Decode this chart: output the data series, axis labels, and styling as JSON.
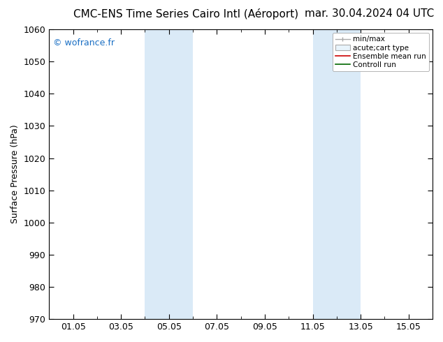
{
  "title": "CMC-ENS Time Series Cairo Intl (Aéroport)",
  "title_right": "mar. 30.04.2024 04 UTC",
  "ylabel": "Surface Pressure (hPa)",
  "ylim": [
    970,
    1060
  ],
  "yticks": [
    970,
    980,
    990,
    1000,
    1010,
    1020,
    1030,
    1040,
    1050,
    1060
  ],
  "xtick_positions": [
    1,
    3,
    5,
    7,
    9,
    11,
    13,
    15
  ],
  "xtick_labels": [
    "01.05",
    "03.05",
    "05.05",
    "07.05",
    "09.05",
    "11.05",
    "13.05",
    "15.05"
  ],
  "xlim": [
    0,
    16
  ],
  "watermark": "© wofrance.fr",
  "watermark_color": "#1a6fc4",
  "background_color": "#ffffff",
  "plot_bg_color": "#ffffff",
  "shaded_bands": [
    {
      "xstart": 4.0,
      "xend": 6.0
    },
    {
      "xstart": 11.0,
      "xend": 13.0
    }
  ],
  "shaded_color": "#daeaf7",
  "legend_entries": [
    "min/max",
    "acute;cart type",
    "Ensemble mean run",
    "Controll run"
  ],
  "legend_line_colors": [
    "#aaaaaa",
    "#cccccc",
    "#cc0000",
    "#006600"
  ],
  "fig_width": 6.34,
  "fig_height": 4.9,
  "dpi": 100,
  "title_fontsize": 11,
  "tick_labelsize": 9,
  "ylabel_fontsize": 9,
  "legend_fontsize": 7.5
}
